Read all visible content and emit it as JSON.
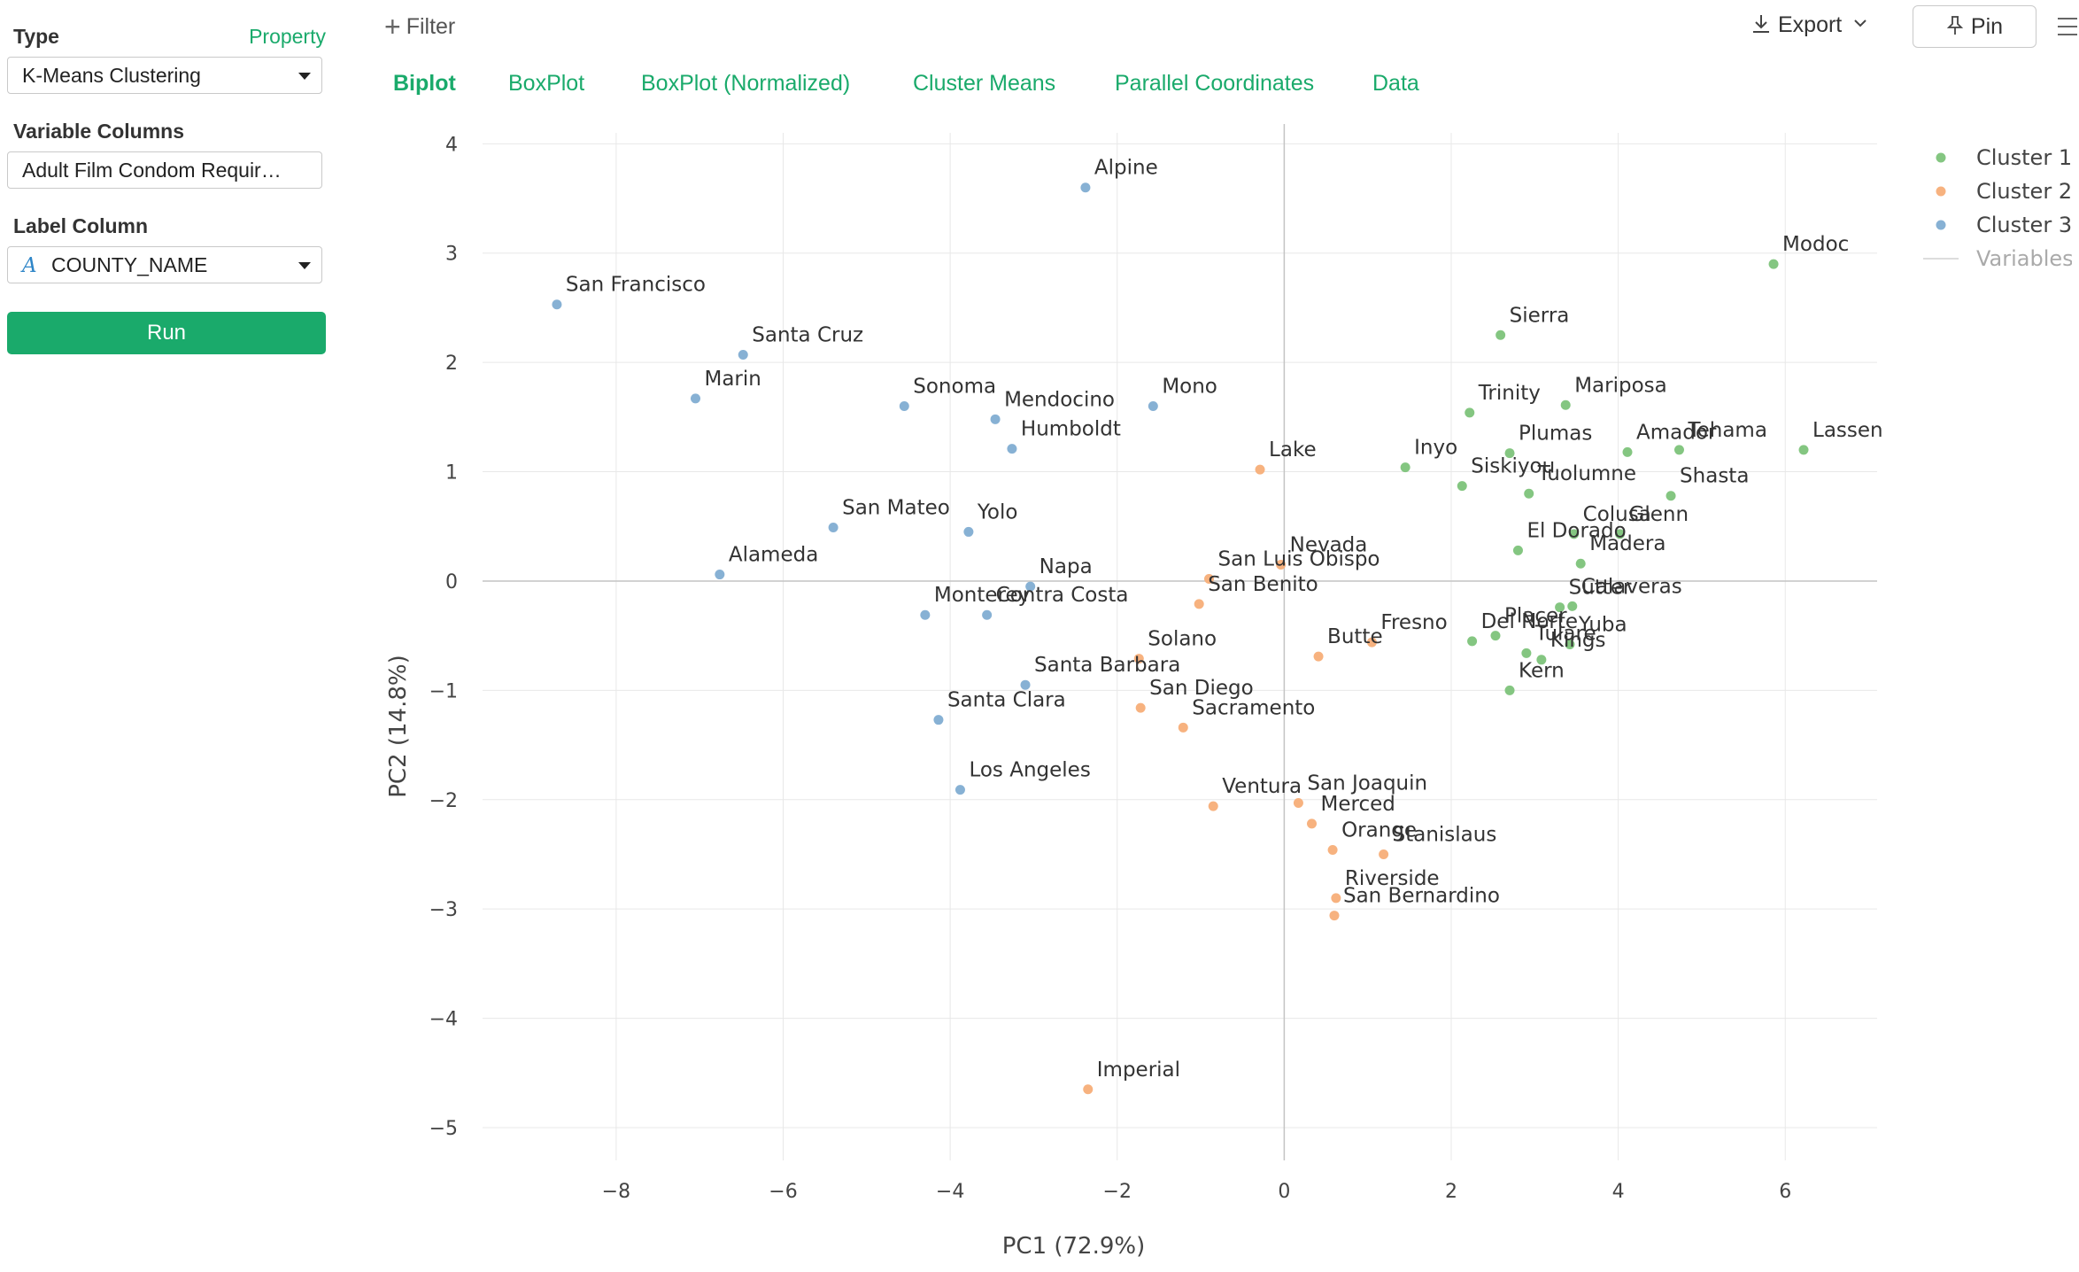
{
  "sidebar": {
    "type_label": "Type",
    "property_link": "Property",
    "type_value": "K-Means Clustering",
    "variable_columns_label": "Variable Columns",
    "variable_columns_value": "Adult Film Condom Requir…",
    "label_column_label": "Label Column",
    "label_column_icon": "A",
    "label_column_value": "COUNTY_NAME",
    "run_label": "Run"
  },
  "toolbar": {
    "filter_label": "Filter",
    "export_label": "Export",
    "pin_label": "Pin"
  },
  "tabs": [
    "Biplot",
    "BoxPlot",
    "BoxPlot (Normalized)",
    "Cluster Means",
    "Parallel Coordinates",
    "Data"
  ],
  "colors": {
    "accent": "#1aaa6b",
    "cluster1": "#84c681",
    "cluster2": "#f7b27f",
    "cluster3": "#87b1d4"
  },
  "chart_data": {
    "type": "scatter",
    "xlabel": "PC1 (72.9%)",
    "ylabel": "PC2 (14.8%)",
    "xlim": [
      -9.6,
      7.1
    ],
    "ylim": [
      -5.3,
      4.1
    ],
    "xticks": [
      -8,
      -6,
      -4,
      -2,
      0,
      2,
      4,
      6
    ],
    "yticks": [
      4,
      3,
      2,
      1,
      0,
      -1,
      -2,
      -3,
      -4,
      -5
    ],
    "tick_labels_x": [
      "−8",
      "−6",
      "−4",
      "−2",
      "0",
      "2",
      "4",
      "6"
    ],
    "tick_labels_y": [
      "4",
      "3",
      "2",
      "1",
      "0",
      "−1",
      "−2",
      "−3",
      "−4",
      "−5"
    ],
    "grid": true,
    "legend": {
      "position": "top-right",
      "entries": [
        "Cluster 1",
        "Cluster 2",
        "Cluster 3",
        "Variables"
      ]
    },
    "series": [
      {
        "name": "Cluster 1",
        "points": [
          {
            "label": "Modoc",
            "x": 5.86,
            "y": 2.9
          },
          {
            "label": "Sierra",
            "x": 2.59,
            "y": 2.25
          },
          {
            "label": "Trinity",
            "x": 2.22,
            "y": 1.54
          },
          {
            "label": "Mariposa",
            "x": 3.37,
            "y": 1.61
          },
          {
            "label": "Plumas",
            "x": 2.7,
            "y": 1.17
          },
          {
            "label": "Amador",
            "x": 4.11,
            "y": 1.18
          },
          {
            "label": "Tehama",
            "x": 4.73,
            "y": 1.2
          },
          {
            "label": "Lassen",
            "x": 6.22,
            "y": 1.2
          },
          {
            "label": "Inyo",
            "x": 1.45,
            "y": 1.04
          },
          {
            "label": "Siskiyou",
            "x": 2.13,
            "y": 0.87
          },
          {
            "label": "Tuolumne",
            "x": 2.93,
            "y": 0.8
          },
          {
            "label": "Shasta",
            "x": 4.63,
            "y": 0.78
          },
          {
            "label": "Colusa",
            "x": 3.47,
            "y": 0.43
          },
          {
            "label": "Glenn",
            "x": 4.02,
            "y": 0.43
          },
          {
            "label": "El Dorado",
            "x": 2.8,
            "y": 0.28
          },
          {
            "label": "Madera",
            "x": 3.55,
            "y": 0.16
          },
          {
            "label": "Sutter",
            "x": 3.3,
            "y": -0.24
          },
          {
            "label": "Calaveras",
            "x": 3.45,
            "y": -0.23
          },
          {
            "label": "Placer",
            "x": 2.53,
            "y": -0.5
          },
          {
            "label": "Del Norte",
            "x": 2.25,
            "y": -0.55
          },
          {
            "label": "Yuba",
            "x": 3.42,
            "y": -0.58
          },
          {
            "label": "Tulare",
            "x": 2.9,
            "y": -0.66
          },
          {
            "label": "Kings",
            "x": 3.08,
            "y": -0.72
          },
          {
            "label": "Kern",
            "x": 2.7,
            "y": -1.0
          }
        ]
      },
      {
        "name": "Cluster 2",
        "points": [
          {
            "label": "Lake",
            "x": -0.29,
            "y": 1.02
          },
          {
            "label": "Nevada",
            "x": -0.04,
            "y": 0.15
          },
          {
            "label": "San Luis Obispo",
            "x": -0.9,
            "y": 0.02
          },
          {
            "label": "San Benito",
            "x": -1.02,
            "y": -0.21
          },
          {
            "label": "Butte",
            "x": 0.41,
            "y": -0.69
          },
          {
            "label": "Fresno",
            "x": 1.05,
            "y": -0.56
          },
          {
            "label": "Solano",
            "x": -1.74,
            "y": -0.71
          },
          {
            "label": "San Diego",
            "x": -1.72,
            "y": -1.16
          },
          {
            "label": "Sacramento",
            "x": -1.21,
            "y": -1.34
          },
          {
            "label": "Ventura",
            "x": -0.85,
            "y": -2.06
          },
          {
            "label": "San Joaquin",
            "x": 0.17,
            "y": -2.03
          },
          {
            "label": "Merced",
            "x": 0.33,
            "y": -2.22
          },
          {
            "label": "Orange",
            "x": 0.58,
            "y": -2.46
          },
          {
            "label": "Stanislaus",
            "x": 1.19,
            "y": -2.5
          },
          {
            "label": "Riverside",
            "x": 0.62,
            "y": -2.9
          },
          {
            "label": "San Bernardino",
            "x": 0.6,
            "y": -3.06
          },
          {
            "label": "Imperial",
            "x": -2.35,
            "y": -4.65
          }
        ]
      },
      {
        "name": "Cluster 3",
        "points": [
          {
            "label": "Alpine",
            "x": -2.38,
            "y": 3.6
          },
          {
            "label": "San Francisco",
            "x": -8.71,
            "y": 2.53
          },
          {
            "label": "Santa Cruz",
            "x": -6.48,
            "y": 2.07
          },
          {
            "label": "Marin",
            "x": -7.05,
            "y": 1.67
          },
          {
            "label": "Sonoma",
            "x": -4.55,
            "y": 1.6
          },
          {
            "label": "Mendocino",
            "x": -3.46,
            "y": 1.48
          },
          {
            "label": "Mono",
            "x": -1.57,
            "y": 1.6
          },
          {
            "label": "Humboldt",
            "x": -3.26,
            "y": 1.21
          },
          {
            "label": "San Mateo",
            "x": -5.4,
            "y": 0.49
          },
          {
            "label": "Yolo",
            "x": -3.78,
            "y": 0.45
          },
          {
            "label": "Alameda",
            "x": -6.76,
            "y": 0.06
          },
          {
            "label": "Napa",
            "x": -3.04,
            "y": -0.05
          },
          {
            "label": "Monterey",
            "x": -4.3,
            "y": -0.31
          },
          {
            "label": "Contra Costa",
            "x": -3.56,
            "y": -0.31
          },
          {
            "label": "Santa Barbara",
            "x": -3.1,
            "y": -0.95
          },
          {
            "label": "Santa Clara",
            "x": -4.14,
            "y": -1.27
          },
          {
            "label": "Los Angeles",
            "x": -3.88,
            "y": -1.91
          }
        ]
      }
    ]
  }
}
